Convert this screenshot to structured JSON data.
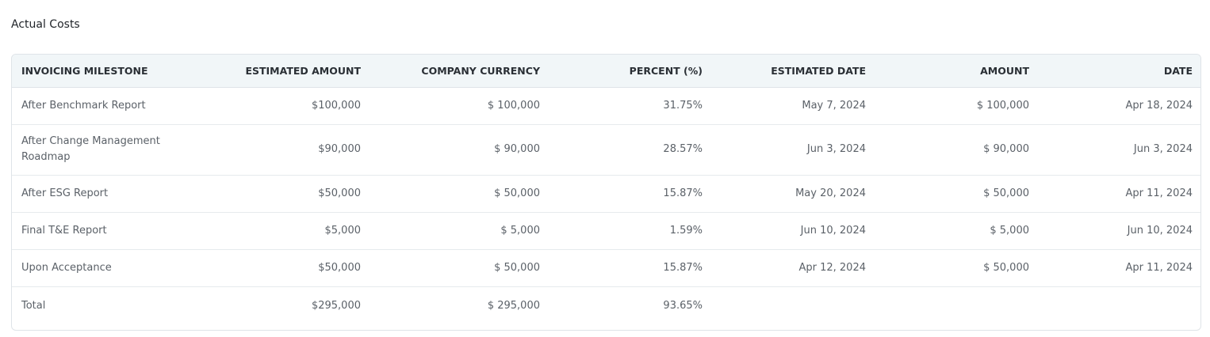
{
  "section": {
    "title": "Actual Costs"
  },
  "table": {
    "headers": {
      "milestone": "INVOICING MILESTONE",
      "estimated_amount": "ESTIMATED AMOUNT",
      "company_currency": "COMPANY CURRENCY",
      "percent": "PERCENT (%)",
      "estimated_date": "ESTIMATED DATE",
      "amount": "AMOUNT",
      "date": "DATE"
    },
    "rows": [
      {
        "milestone": "After Benchmark Report",
        "estimated_amount": "$100,000",
        "company_currency": "$ 100,000",
        "percent": "31.75%",
        "estimated_date": "May 7, 2024",
        "amount": "$ 100,000",
        "date": "Apr 18, 2024"
      },
      {
        "milestone": "After Change Management Roadmap",
        "estimated_amount": "$90,000",
        "company_currency": "$ 90,000",
        "percent": "28.57%",
        "estimated_date": "Jun 3, 2024",
        "amount": "$ 90,000",
        "date": "Jun 3, 2024"
      },
      {
        "milestone": "After ESG Report",
        "estimated_amount": "$50,000",
        "company_currency": "$ 50,000",
        "percent": "15.87%",
        "estimated_date": "May 20, 2024",
        "amount": "$ 50,000",
        "date": "Apr 11, 2024"
      },
      {
        "milestone": "Final T&E Report",
        "estimated_amount": "$5,000",
        "company_currency": "$ 5,000",
        "percent": "1.59%",
        "estimated_date": "Jun 10, 2024",
        "amount": "$ 5,000",
        "date": "Jun 10, 2024"
      },
      {
        "milestone": "Upon Acceptance",
        "estimated_amount": "$50,000",
        "company_currency": "$ 50,000",
        "percent": "15.87%",
        "estimated_date": "Apr 12, 2024",
        "amount": "$ 50,000",
        "date": "Apr 11, 2024"
      }
    ],
    "total": {
      "label": "Total",
      "estimated_amount": "$295,000",
      "company_currency": "$ 295,000",
      "percent": "93.65%"
    }
  }
}
